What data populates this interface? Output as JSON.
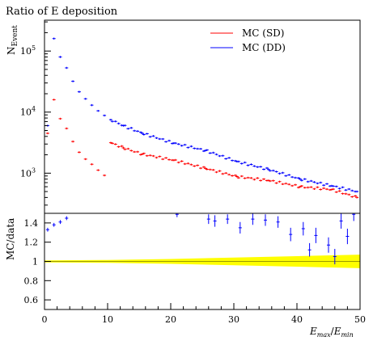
{
  "chart_data": [
    {
      "type": "scatter",
      "title": "Ratio of E deposition",
      "ylabel": "N_Event",
      "ylabel_main": "N",
      "ylabel_sub": "Event",
      "yscale": "log",
      "xlim": [
        0,
        50
      ],
      "ylim": [
        220,
        320000
      ],
      "yticks": [
        {
          "value": 1000,
          "base": "10",
          "exp": "3"
        },
        {
          "value": 10000,
          "base": "10",
          "exp": "4"
        },
        {
          "value": 100000,
          "base": "10",
          "exp": "5"
        }
      ],
      "legend_position": "top-right",
      "series": [
        {
          "name": "MC (SD)",
          "color": "#ff0000",
          "x": [
            0.5,
            1.5,
            2.5,
            3.5,
            4.5,
            5.5,
            6.5,
            7.5,
            8.5,
            9.5,
            10.5,
            12.5,
            15.5,
            20.5,
            25.5,
            30.5,
            35.5,
            40.5,
            45.5,
            49.5
          ],
          "y": [
            4500,
            16000,
            7800,
            5400,
            3300,
            2200,
            1700,
            1400,
            1120,
            920,
            3150,
            2600,
            2050,
            1630,
            1200,
            880,
            760,
            600,
            540,
            400
          ]
        },
        {
          "name": "MC (DD)",
          "color": "#0000ff",
          "x": [
            0.5,
            1.5,
            2.5,
            3.5,
            4.5,
            5.5,
            6.5,
            7.5,
            8.5,
            9.5,
            10.5,
            12.5,
            15.5,
            20.5,
            25.5,
            30.5,
            35.5,
            40.5,
            45.5,
            49.5
          ],
          "y": [
            6000,
            160000,
            80000,
            53000,
            32000,
            21500,
            16500,
            13000,
            10500,
            8800,
            7500,
            6000,
            4500,
            3100,
            2350,
            1550,
            1150,
            800,
            620,
            500
          ]
        }
      ]
    },
    {
      "type": "scatter",
      "ylabel": "MC/data",
      "xlabel": "E_max/E_min",
      "xlabel_a": "E",
      "xlabel_a_sub": "max",
      "xlabel_slash": "/",
      "xlabel_b": "E",
      "xlabel_b_sub": "min",
      "xlim": [
        0,
        50
      ],
      "ylim": [
        0.5,
        1.5
      ],
      "xticks": [
        "0",
        "10",
        "20",
        "30",
        "40",
        "50"
      ],
      "yticks": [
        "0.6",
        "0.8",
        "1",
        "1.2",
        "1.4"
      ],
      "band_color": "#ffff00",
      "band": {
        "x": [
          0,
          10,
          20,
          30,
          40,
          50
        ],
        "low": [
          0.99,
          0.985,
          0.975,
          0.96,
          0.945,
          0.93
        ],
        "high": [
          1.01,
          1.015,
          1.025,
          1.04,
          1.055,
          1.07
        ]
      },
      "series": [
        {
          "name": "MC (DD)",
          "color": "#0000ff",
          "x": [
            0.5,
            1.5,
            2.5,
            3.5,
            21,
            26,
            27,
            29,
            31,
            33,
            35,
            37,
            39,
            41,
            42,
            43,
            45,
            46,
            47,
            48,
            49
          ],
          "y": [
            1.33,
            1.38,
            1.41,
            1.45,
            1.49,
            1.44,
            1.42,
            1.44,
            1.35,
            1.44,
            1.43,
            1.41,
            1.28,
            1.34,
            1.12,
            1.27,
            1.17,
            1.05,
            1.42,
            1.26,
            1.49
          ],
          "err": [
            0.02,
            0.02,
            0.02,
            0.02,
            0.03,
            0.05,
            0.06,
            0.05,
            0.06,
            0.06,
            0.06,
            0.06,
            0.07,
            0.07,
            0.07,
            0.08,
            0.08,
            0.08,
            0.08,
            0.08,
            0.07
          ]
        }
      ]
    }
  ]
}
